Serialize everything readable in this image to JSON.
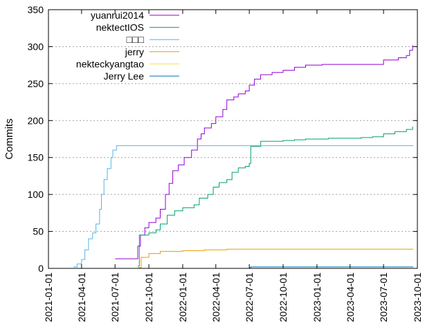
{
  "chart_data": {
    "type": "line",
    "title": "",
    "xlabel": "",
    "ylabel": "Commits",
    "x_type": "date",
    "xlim": [
      "2021-01-01",
      "2023-10-01"
    ],
    "ylim": [
      0,
      350
    ],
    "xticks": [
      "2021-01-01",
      "2021-04-01",
      "2021-07-01",
      "2021-10-01",
      "2022-01-01",
      "2022-04-01",
      "2022-07-01",
      "2022-10-01",
      "2023-01-01",
      "2023-04-01",
      "2023-07-01",
      "2023-10-01"
    ],
    "yticks": [
      0,
      50,
      100,
      150,
      200,
      250,
      300,
      350
    ],
    "grid": "horizontal dotted",
    "legend_position": "top-left",
    "step": true,
    "series": [
      {
        "name": "yuanrui2014",
        "color": "#9400d3",
        "points": [
          [
            "2021-07-01",
            13
          ],
          [
            "2021-08-22",
            13
          ],
          [
            "2021-09-01",
            30
          ],
          [
            "2021-09-08",
            45
          ],
          [
            "2021-09-20",
            55
          ],
          [
            "2021-10-01",
            62
          ],
          [
            "2021-10-20",
            68
          ],
          [
            "2021-11-01",
            80
          ],
          [
            "2021-11-15",
            100
          ],
          [
            "2021-11-25",
            115
          ],
          [
            "2021-12-05",
            132
          ],
          [
            "2021-12-20",
            140
          ],
          [
            "2022-01-05",
            150
          ],
          [
            "2022-01-25",
            160
          ],
          [
            "2022-02-10",
            175
          ],
          [
            "2022-02-20",
            182
          ],
          [
            "2022-03-01",
            190
          ],
          [
            "2022-03-20",
            196
          ],
          [
            "2022-04-01",
            205
          ],
          [
            "2022-04-20",
            215
          ],
          [
            "2022-05-01",
            228
          ],
          [
            "2022-05-20",
            232
          ],
          [
            "2022-06-01",
            236
          ],
          [
            "2022-06-20",
            240
          ],
          [
            "2022-07-01",
            248
          ],
          [
            "2022-07-15",
            256
          ],
          [
            "2022-08-01",
            262
          ],
          [
            "2022-09-01",
            265
          ],
          [
            "2022-10-01",
            268
          ],
          [
            "2022-11-01",
            272
          ],
          [
            "2022-12-01",
            275
          ],
          [
            "2023-01-15",
            276
          ],
          [
            "2023-03-01",
            276
          ],
          [
            "2023-06-25",
            276
          ],
          [
            "2023-07-01",
            282
          ],
          [
            "2023-08-10",
            285
          ],
          [
            "2023-09-01",
            288
          ],
          [
            "2023-09-10",
            295
          ],
          [
            "2023-09-18",
            302
          ]
        ]
      },
      {
        "name": "nektectIOS",
        "color": "#009e73",
        "points": [
          [
            "2021-09-01",
            3
          ],
          [
            "2021-09-05",
            45
          ],
          [
            "2021-10-01",
            48
          ],
          [
            "2021-10-20",
            52
          ],
          [
            "2021-11-01",
            60
          ],
          [
            "2021-11-20",
            72
          ],
          [
            "2021-12-10",
            78
          ],
          [
            "2022-01-01",
            82
          ],
          [
            "2022-02-01",
            86
          ],
          [
            "2022-02-15",
            95
          ],
          [
            "2022-03-10",
            100
          ],
          [
            "2022-03-25",
            110
          ],
          [
            "2022-04-10",
            116
          ],
          [
            "2022-05-01",
            120
          ],
          [
            "2022-05-15",
            130
          ],
          [
            "2022-06-01",
            136
          ],
          [
            "2022-06-20",
            138
          ],
          [
            "2022-07-01",
            142
          ],
          [
            "2022-07-05",
            165
          ],
          [
            "2022-08-01",
            172
          ],
          [
            "2022-09-01",
            172
          ],
          [
            "2022-10-01",
            173
          ],
          [
            "2022-11-01",
            174
          ],
          [
            "2022-12-01",
            175
          ],
          [
            "2023-02-01",
            176
          ],
          [
            "2023-05-01",
            177
          ],
          [
            "2023-06-01",
            178
          ],
          [
            "2023-07-01",
            182
          ],
          [
            "2023-08-01",
            185
          ],
          [
            "2023-09-01",
            188
          ],
          [
            "2023-09-18",
            192
          ]
        ]
      },
      {
        "name": "□□□",
        "color": "#56b4e9",
        "points": [
          [
            "2021-03-10",
            2
          ],
          [
            "2021-03-20",
            6
          ],
          [
            "2021-04-01",
            12
          ],
          [
            "2021-04-10",
            25
          ],
          [
            "2021-04-20",
            40
          ],
          [
            "2021-05-01",
            48
          ],
          [
            "2021-05-10",
            60
          ],
          [
            "2021-05-20",
            80
          ],
          [
            "2021-05-25",
            100
          ],
          [
            "2021-06-01",
            120
          ],
          [
            "2021-06-10",
            135
          ],
          [
            "2021-06-20",
            150
          ],
          [
            "2021-06-25",
            160
          ],
          [
            "2021-07-05",
            166
          ],
          [
            "2023-09-20",
            166
          ]
        ]
      },
      {
        "name": "jerry",
        "color": "#e69f00",
        "points": [
          [
            "2021-09-01",
            1
          ],
          [
            "2021-09-10",
            15
          ],
          [
            "2021-10-01",
            20
          ],
          [
            "2021-11-01",
            23
          ],
          [
            "2022-01-01",
            24
          ],
          [
            "2022-03-01",
            25
          ],
          [
            "2022-05-01",
            26
          ],
          [
            "2023-09-20",
            26
          ]
        ]
      },
      {
        "name": "nekteckyangtao",
        "color": "#f0e442",
        "points": [
          [
            "2021-07-01",
            0
          ],
          [
            "2023-09-20",
            0
          ]
        ]
      },
      {
        "name": "Jerry Lee",
        "color": "#0072b2",
        "points": [
          [
            "2022-07-01",
            1
          ],
          [
            "2022-07-05",
            2
          ],
          [
            "2023-09-20",
            2
          ]
        ]
      }
    ]
  }
}
